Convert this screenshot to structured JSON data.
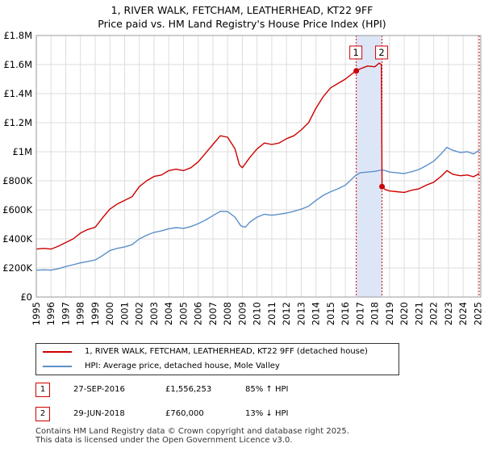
{
  "title_line1": "1, RIVER WALK, FETCHAM, LEATHERHEAD, KT22 9FF",
  "title_line2": "Price paid vs. HM Land Registry's House Price Index (HPI)",
  "colors": {
    "property": "#cc0000",
    "hpi": "#5b8fc9",
    "shade": "#dde6f7",
    "grid": "#dddddd"
  },
  "chart_data": {
    "type": "line",
    "xlim": [
      1995,
      2025.2
    ],
    "ylim": [
      0,
      1800000
    ],
    "yticks": [
      0,
      200000,
      400000,
      600000,
      800000,
      1000000,
      1200000,
      1400000,
      1600000,
      1800000
    ],
    "ytick_labels": [
      "£0",
      "£200K",
      "£400K",
      "£600K",
      "£800K",
      "£1M",
      "£1.2M",
      "£1.4M",
      "£1.6M",
      "£1.8M"
    ],
    "xtick_labels": [
      "1995",
      "1996",
      "1997",
      "1998",
      "1999",
      "2000",
      "2001",
      "2002",
      "2003",
      "2004",
      "2005",
      "2006",
      "2007",
      "2008",
      "2009",
      "2010",
      "2011",
      "2012",
      "2013",
      "2014",
      "2015",
      "2016",
      "2017",
      "2018",
      "2019",
      "2020",
      "2021",
      "2022",
      "2023",
      "2024",
      "2025"
    ],
    "series": [
      {
        "name": "1, RIVER WALK, FETCHAM, LEATHERHEAD, KT22 9FF (detached house)",
        "color": "#cc0000",
        "points": [
          [
            1995.0,
            330000
          ],
          [
            1995.5,
            335000
          ],
          [
            1996.0,
            330000
          ],
          [
            1996.5,
            350000
          ],
          [
            1997.0,
            375000
          ],
          [
            1997.5,
            400000
          ],
          [
            1998.0,
            440000
          ],
          [
            1998.5,
            465000
          ],
          [
            1999.0,
            480000
          ],
          [
            1999.5,
            545000
          ],
          [
            2000.0,
            605000
          ],
          [
            2000.5,
            640000
          ],
          [
            2001.0,
            665000
          ],
          [
            2001.5,
            690000
          ],
          [
            2002.0,
            760000
          ],
          [
            2002.5,
            800000
          ],
          [
            2003.0,
            830000
          ],
          [
            2003.5,
            840000
          ],
          [
            2004.0,
            870000
          ],
          [
            2004.5,
            880000
          ],
          [
            2005.0,
            870000
          ],
          [
            2005.5,
            890000
          ],
          [
            2006.0,
            930000
          ],
          [
            2006.5,
            990000
          ],
          [
            2007.0,
            1050000
          ],
          [
            2007.5,
            1110000
          ],
          [
            2008.0,
            1100000
          ],
          [
            2008.5,
            1020000
          ],
          [
            2008.8,
            910000
          ],
          [
            2009.0,
            890000
          ],
          [
            2009.5,
            960000
          ],
          [
            2010.0,
            1020000
          ],
          [
            2010.5,
            1060000
          ],
          [
            2011.0,
            1050000
          ],
          [
            2011.5,
            1060000
          ],
          [
            2012.0,
            1090000
          ],
          [
            2012.5,
            1110000
          ],
          [
            2013.0,
            1150000
          ],
          [
            2013.5,
            1200000
          ],
          [
            2014.0,
            1300000
          ],
          [
            2014.5,
            1380000
          ],
          [
            2015.0,
            1440000
          ],
          [
            2015.5,
            1470000
          ],
          [
            2016.0,
            1500000
          ],
          [
            2016.5,
            1540000
          ],
          [
            2016.74,
            1556253
          ],
          [
            2017.0,
            1570000
          ],
          [
            2017.5,
            1590000
          ],
          [
            2018.0,
            1585000
          ],
          [
            2018.3,
            1610000
          ],
          [
            2018.45,
            1600000
          ],
          [
            2018.49,
            760000
          ],
          [
            2018.7,
            740000
          ],
          [
            2019.0,
            730000
          ],
          [
            2019.5,
            725000
          ],
          [
            2020.0,
            720000
          ],
          [
            2020.5,
            735000
          ],
          [
            2021.0,
            745000
          ],
          [
            2021.5,
            770000
          ],
          [
            2022.0,
            790000
          ],
          [
            2022.5,
            830000
          ],
          [
            2022.9,
            870000
          ],
          [
            2023.3,
            845000
          ],
          [
            2023.8,
            835000
          ],
          [
            2024.3,
            840000
          ],
          [
            2024.7,
            828000
          ],
          [
            2025.1,
            850000
          ]
        ]
      },
      {
        "name": "HPI: Average price, detached house, Mole Valley",
        "color": "#5b8fc9",
        "points": [
          [
            1995.0,
            185000
          ],
          [
            1995.5,
            187000
          ],
          [
            1996.0,
            185000
          ],
          [
            1996.5,
            195000
          ],
          [
            1997.0,
            210000
          ],
          [
            1997.5,
            222000
          ],
          [
            1998.0,
            235000
          ],
          [
            1998.5,
            245000
          ],
          [
            1999.0,
            255000
          ],
          [
            1999.5,
            285000
          ],
          [
            2000.0,
            320000
          ],
          [
            2000.5,
            335000
          ],
          [
            2001.0,
            345000
          ],
          [
            2001.5,
            360000
          ],
          [
            2002.0,
            400000
          ],
          [
            2002.5,
            425000
          ],
          [
            2003.0,
            445000
          ],
          [
            2003.5,
            455000
          ],
          [
            2004.0,
            470000
          ],
          [
            2004.5,
            478000
          ],
          [
            2005.0,
            473000
          ],
          [
            2005.5,
            485000
          ],
          [
            2006.0,
            505000
          ],
          [
            2006.5,
            530000
          ],
          [
            2007.0,
            560000
          ],
          [
            2007.5,
            590000
          ],
          [
            2008.0,
            588000
          ],
          [
            2008.5,
            550000
          ],
          [
            2008.9,
            490000
          ],
          [
            2009.2,
            480000
          ],
          [
            2009.5,
            515000
          ],
          [
            2010.0,
            550000
          ],
          [
            2010.5,
            570000
          ],
          [
            2011.0,
            563000
          ],
          [
            2011.5,
            570000
          ],
          [
            2012.0,
            578000
          ],
          [
            2012.5,
            590000
          ],
          [
            2013.0,
            605000
          ],
          [
            2013.5,
            625000
          ],
          [
            2014.0,
            665000
          ],
          [
            2014.5,
            700000
          ],
          [
            2015.0,
            725000
          ],
          [
            2015.5,
            745000
          ],
          [
            2016.0,
            770000
          ],
          [
            2016.74,
            840000
          ],
          [
            2017.0,
            855000
          ],
          [
            2017.5,
            860000
          ],
          [
            2018.0,
            865000
          ],
          [
            2018.49,
            875000
          ],
          [
            2018.8,
            868000
          ],
          [
            2019.0,
            860000
          ],
          [
            2019.5,
            855000
          ],
          [
            2020.0,
            850000
          ],
          [
            2020.5,
            862000
          ],
          [
            2021.0,
            878000
          ],
          [
            2021.5,
            905000
          ],
          [
            2022.0,
            935000
          ],
          [
            2022.5,
            985000
          ],
          [
            2022.9,
            1030000
          ],
          [
            2023.3,
            1010000
          ],
          [
            2023.8,
            995000
          ],
          [
            2024.3,
            1000000
          ],
          [
            2024.7,
            985000
          ],
          [
            2025.1,
            1010000
          ]
        ]
      }
    ],
    "shaded_range": [
      2016.74,
      2018.49
    ],
    "markers": [
      {
        "id": "1",
        "x": 2016.74,
        "y": 1556253
      },
      {
        "id": "2",
        "x": 2018.49,
        "y": 760000
      }
    ]
  },
  "legend": {
    "property_label": "1, RIVER WALK, FETCHAM, LEATHERHEAD, KT22 9FF (detached house)",
    "hpi_label": "HPI: Average price, detached house, Mole Valley"
  },
  "transactions": [
    {
      "num": "1",
      "date": "27-SEP-2016",
      "price": "£1,556,253",
      "hpi": "85% ↑ HPI"
    },
    {
      "num": "2",
      "date": "29-JUN-2018",
      "price": "£760,000",
      "hpi": "13% ↓ HPI"
    }
  ],
  "footer_line1": "Contains HM Land Registry data © Crown copyright and database right 2025.",
  "footer_line2": "This data is licensed under the Open Government Licence v3.0."
}
